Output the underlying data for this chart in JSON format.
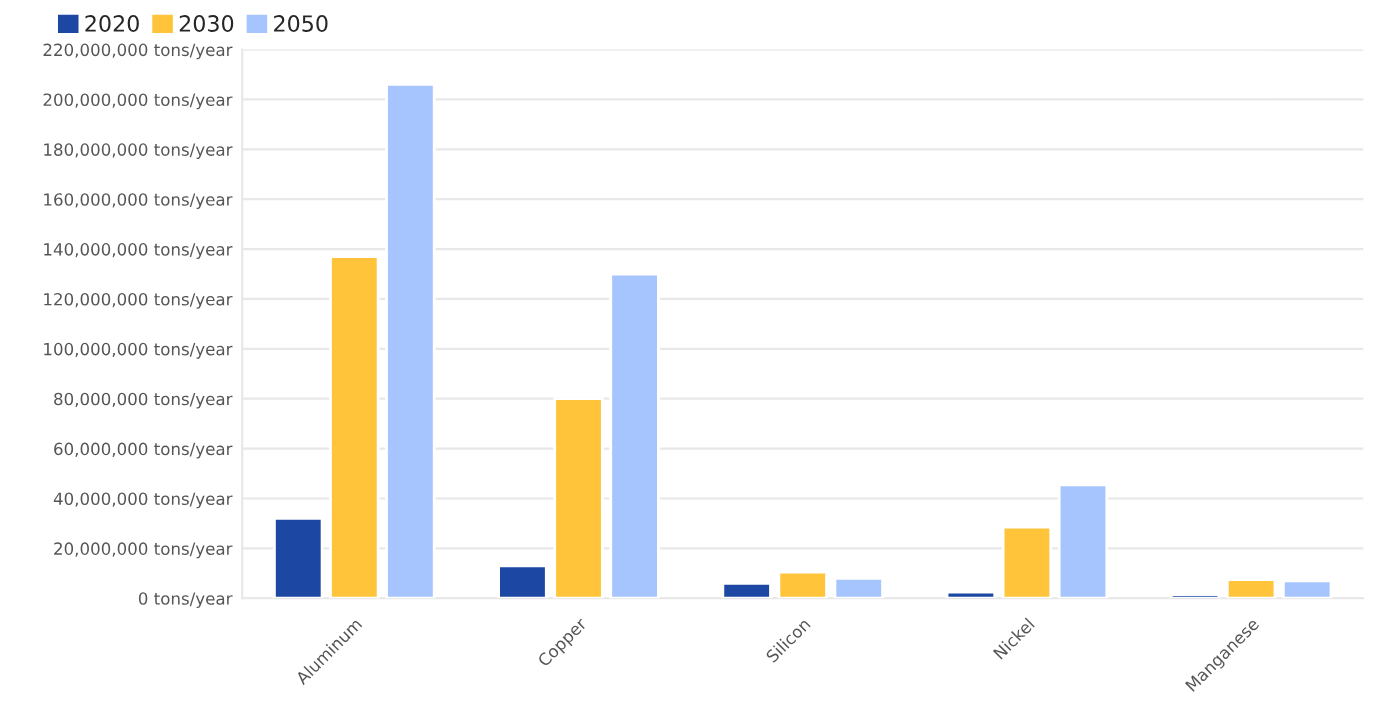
{
  "chart_data": {
    "type": "bar",
    "categories": [
      "Aluminum",
      "Copper",
      "Silicon",
      "Nickel",
      "Manganese"
    ],
    "series": [
      {
        "name": "2020",
        "color": "#1c47a3",
        "values": [
          32000000,
          13000000,
          6000000,
          2500000,
          1500000
        ]
      },
      {
        "name": "2030",
        "color": "#ffc43a",
        "values": [
          137000000,
          80000000,
          10500000,
          28500000,
          7500000
        ]
      },
      {
        "name": "2050",
        "color": "#a6c4fd",
        "values": [
          206000000,
          130000000,
          8000000,
          45500000,
          7000000
        ]
      }
    ],
    "ylim": [
      0,
      220000000
    ],
    "yticks": [
      {
        "value": 0,
        "label": "0 tons/year"
      },
      {
        "value": 20000000,
        "label": "20,000,000 tons/year"
      },
      {
        "value": 40000000,
        "label": "40,000,000 tons/year"
      },
      {
        "value": 60000000,
        "label": "60,000,000 tons/year"
      },
      {
        "value": 80000000,
        "label": "80,000,000 tons/year"
      },
      {
        "value": 100000000,
        "label": "100,000,000 tons/year"
      },
      {
        "value": 120000000,
        "label": "120,000,000 tons/year"
      },
      {
        "value": 140000000,
        "label": "140,000,000 tons/year"
      },
      {
        "value": 160000000,
        "label": "160,000,000 tons/year"
      },
      {
        "value": 180000000,
        "label": "180,000,000 tons/year"
      },
      {
        "value": 200000000,
        "label": "200,000,000 tons/year"
      },
      {
        "value": 220000000,
        "label": "220,000,000 tons/year"
      }
    ],
    "grid": "y",
    "legend": "top left"
  }
}
